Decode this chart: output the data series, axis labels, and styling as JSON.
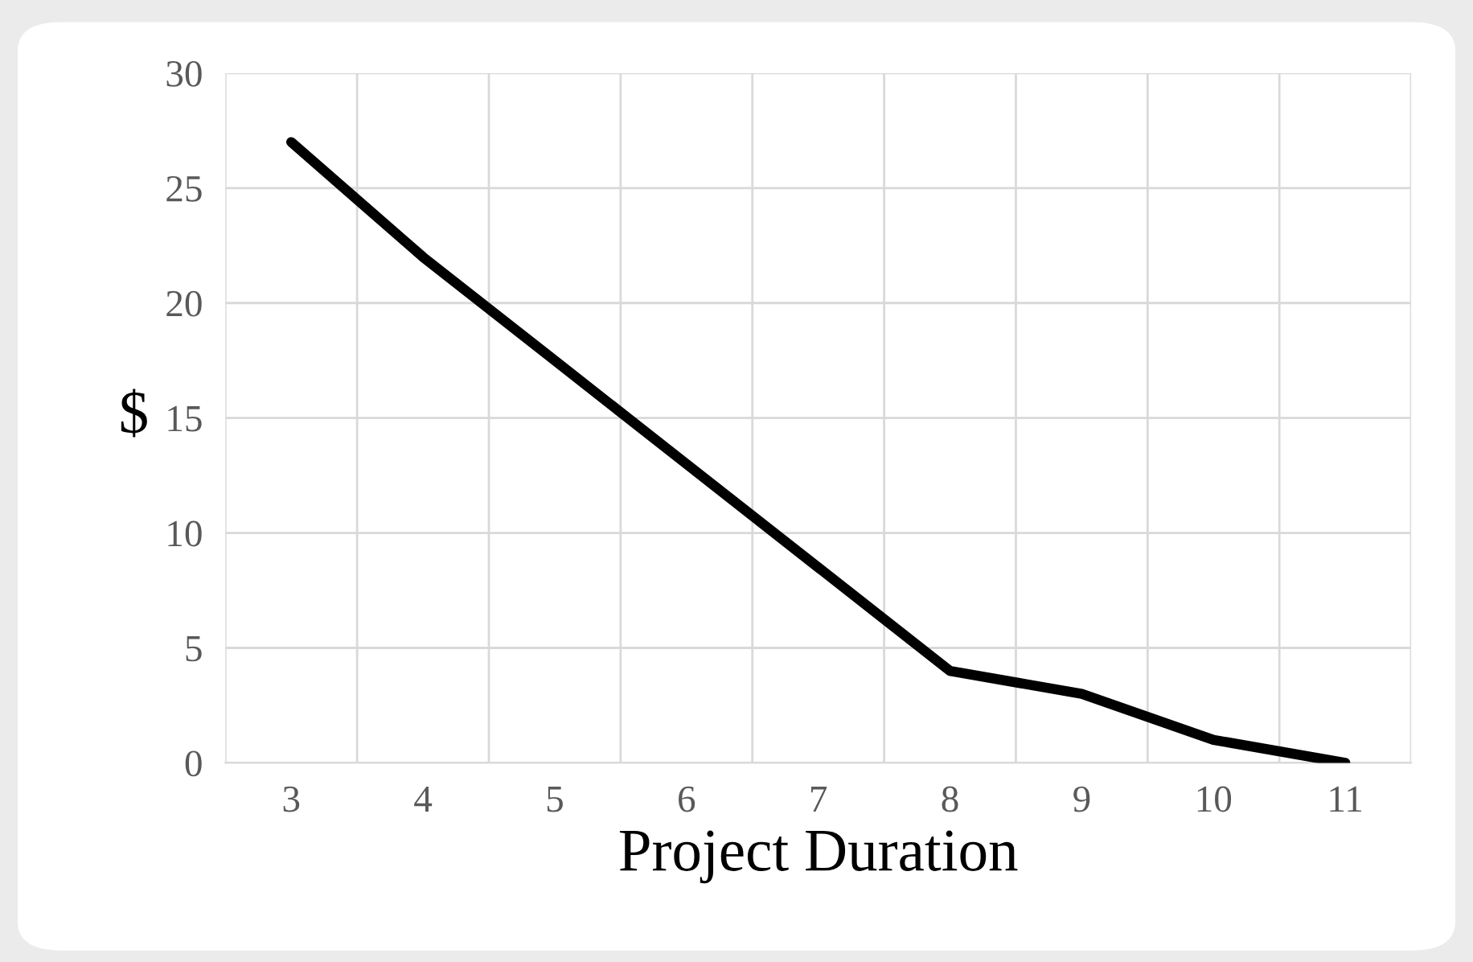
{
  "chart_data": {
    "type": "line",
    "xlabel": "Project Duration",
    "ylabel": "$",
    "categories": [
      "3",
      "4",
      "5",
      "6",
      "7",
      "8",
      "9",
      "10",
      "11"
    ],
    "series": [
      {
        "color": "#000000",
        "values": [
          27,
          22,
          17.5,
          13,
          8.5,
          4,
          3,
          1,
          0
        ]
      }
    ],
    "ylim": [
      0,
      30
    ],
    "yticks": [
      0,
      5,
      10,
      15,
      20,
      25,
      30
    ],
    "grid": true,
    "marker": "none",
    "line_style": "solid"
  }
}
